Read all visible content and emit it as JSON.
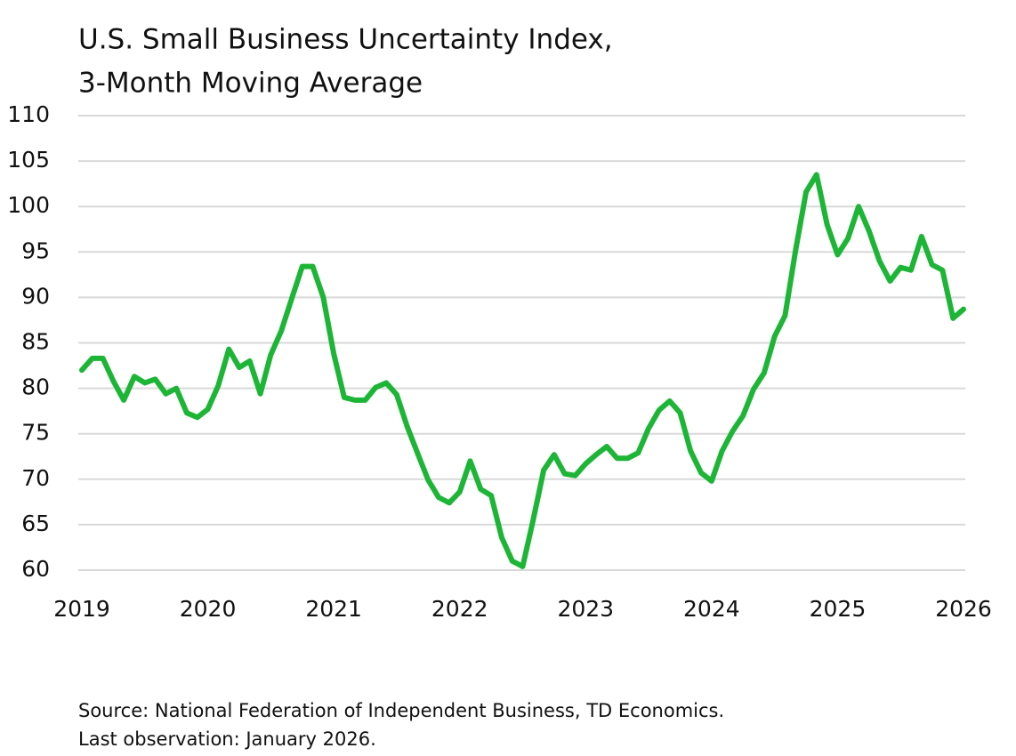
{
  "chart_data": {
    "type": "line",
    "title": [
      "U.S. Small Business Uncertainty Index,",
      "3-Month Moving Average"
    ],
    "source": "Source: National Federation of Independent Business, TD Economics.",
    "note": "Last observation: January 2026.",
    "x": [
      2019,
      2019.083,
      2019.167,
      2019.25,
      2019.333,
      2019.417,
      2019.5,
      2019.583,
      2019.667,
      2019.75,
      2019.833,
      2019.917,
      2020,
      2020.083,
      2020.167,
      2020.25,
      2020.333,
      2020.417,
      2020.5,
      2020.583,
      2020.667,
      2020.75,
      2020.833,
      2020.917,
      2021,
      2021.083,
      2021.167,
      2021.25,
      2021.333,
      2021.417,
      2021.5,
      2021.583,
      2021.667,
      2021.75,
      2021.833,
      2021.917,
      2022,
      2022.083,
      2022.167,
      2022.25,
      2022.333,
      2022.417,
      2022.5,
      2022.583,
      2022.667,
      2022.75,
      2022.833,
      2022.917,
      2023,
      2023.083,
      2023.167,
      2023.25,
      2023.333,
      2023.417,
      2023.5,
      2023.583,
      2023.667,
      2023.75,
      2023.833,
      2023.917,
      2024,
      2024.083,
      2024.167,
      2024.25,
      2024.333,
      2024.417,
      2024.5,
      2024.583,
      2024.667,
      2024.75,
      2024.833,
      2024.917,
      2025,
      2025.083,
      2025.167,
      2025.25,
      2025.333,
      2025.417,
      2025.5,
      2025.583,
      2025.667,
      2025.75,
      2025.833,
      2025.917,
      2026
    ],
    "series": [
      {
        "color": "#1db536",
        "values": [
          82,
          83.3,
          83.3,
          80.8,
          78.7,
          81.3,
          80.6,
          81,
          79.4,
          80,
          77.3,
          76.8,
          77.7,
          80.3,
          84.3,
          82.3,
          83,
          79.4,
          83.7,
          86.3,
          89.9,
          93.4,
          93.4,
          90,
          83.8,
          79,
          78.7,
          78.7,
          80.1,
          80.6,
          79.3,
          75.8,
          72.8,
          69.9,
          68,
          67.4,
          68.6,
          72,
          68.9,
          68.2,
          63.6,
          61,
          60.4,
          65.5,
          71,
          72.7,
          70.6,
          70.4,
          71.7,
          72.7,
          73.6,
          72.3,
          72.3,
          72.9,
          75.6,
          77.6,
          78.6,
          77.3,
          73.1,
          70.7,
          69.8,
          73.1,
          75.3,
          77,
          79.9,
          81.7,
          85.7,
          88,
          95.2,
          101.6,
          103.5,
          98,
          94.7,
          96.5,
          100,
          97.3,
          94,
          91.8,
          93.3,
          93,
          96.7,
          93.6,
          93,
          87.7,
          88.7
        ]
      }
    ],
    "xlim": [
      2019,
      2026
    ],
    "xticks": [
      2019,
      2020,
      2021,
      2022,
      2023,
      2024,
      2025,
      2026
    ],
    "ylim": [
      60,
      110
    ],
    "yticks": [
      60,
      65,
      70,
      75,
      80,
      85,
      90,
      95,
      100,
      105,
      110
    ],
    "grid": true
  }
}
